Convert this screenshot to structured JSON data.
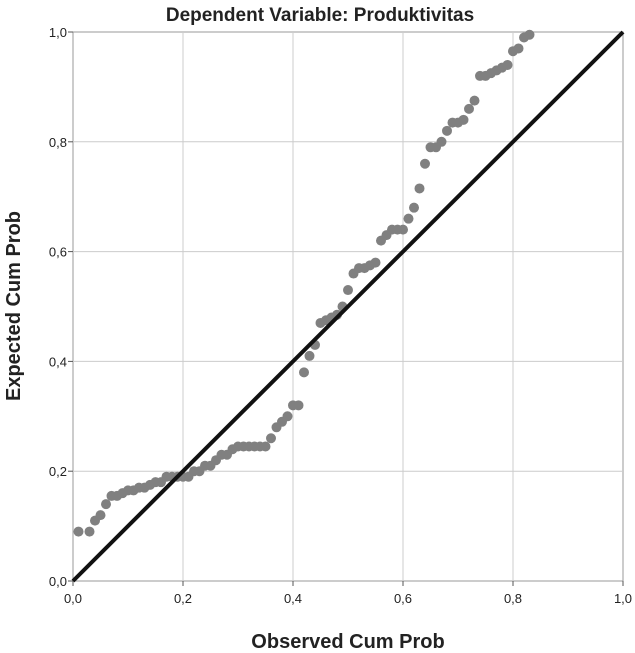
{
  "chart_data": {
    "type": "scatter",
    "title": "Dependent Variable: Produktivitas",
    "xlabel": "Observed Cum Prob",
    "ylabel": "Expected Cum Prob",
    "xlim": [
      0,
      1
    ],
    "ylim": [
      0,
      1
    ],
    "x_ticks": [
      "0,0",
      "0,2",
      "0,4",
      "0,6",
      "0,8",
      "1,0"
    ],
    "y_ticks": [
      "0,0",
      "0,2",
      "0,4",
      "0,6",
      "0,8",
      "1,0"
    ],
    "grid": true,
    "reference_line": {
      "from": [
        0,
        0
      ],
      "to": [
        1,
        1
      ],
      "color": "#111111"
    },
    "point_color": "#808080",
    "points": [
      [
        0.01,
        0.09
      ],
      [
        0.03,
        0.09
      ],
      [
        0.04,
        0.11
      ],
      [
        0.05,
        0.12
      ],
      [
        0.06,
        0.14
      ],
      [
        0.07,
        0.155
      ],
      [
        0.08,
        0.155
      ],
      [
        0.09,
        0.16
      ],
      [
        0.1,
        0.165
      ],
      [
        0.11,
        0.165
      ],
      [
        0.12,
        0.17
      ],
      [
        0.13,
        0.17
      ],
      [
        0.14,
        0.175
      ],
      [
        0.15,
        0.18
      ],
      [
        0.16,
        0.18
      ],
      [
        0.17,
        0.19
      ],
      [
        0.18,
        0.19
      ],
      [
        0.19,
        0.19
      ],
      [
        0.2,
        0.19
      ],
      [
        0.21,
        0.19
      ],
      [
        0.22,
        0.2
      ],
      [
        0.23,
        0.2
      ],
      [
        0.24,
        0.21
      ],
      [
        0.25,
        0.21
      ],
      [
        0.26,
        0.22
      ],
      [
        0.27,
        0.23
      ],
      [
        0.28,
        0.23
      ],
      [
        0.29,
        0.24
      ],
      [
        0.3,
        0.245
      ],
      [
        0.31,
        0.245
      ],
      [
        0.32,
        0.245
      ],
      [
        0.33,
        0.245
      ],
      [
        0.34,
        0.245
      ],
      [
        0.35,
        0.245
      ],
      [
        0.36,
        0.26
      ],
      [
        0.37,
        0.28
      ],
      [
        0.38,
        0.29
      ],
      [
        0.39,
        0.3
      ],
      [
        0.4,
        0.32
      ],
      [
        0.41,
        0.32
      ],
      [
        0.42,
        0.38
      ],
      [
        0.43,
        0.41
      ],
      [
        0.44,
        0.43
      ],
      [
        0.45,
        0.47
      ],
      [
        0.46,
        0.475
      ],
      [
        0.47,
        0.48
      ],
      [
        0.48,
        0.485
      ],
      [
        0.49,
        0.5
      ],
      [
        0.5,
        0.53
      ],
      [
        0.51,
        0.56
      ],
      [
        0.52,
        0.57
      ],
      [
        0.53,
        0.57
      ],
      [
        0.54,
        0.575
      ],
      [
        0.55,
        0.58
      ],
      [
        0.56,
        0.62
      ],
      [
        0.57,
        0.63
      ],
      [
        0.58,
        0.64
      ],
      [
        0.59,
        0.64
      ],
      [
        0.6,
        0.64
      ],
      [
        0.61,
        0.66
      ],
      [
        0.62,
        0.68
      ],
      [
        0.63,
        0.715
      ],
      [
        0.64,
        0.76
      ],
      [
        0.65,
        0.79
      ],
      [
        0.66,
        0.79
      ],
      [
        0.67,
        0.8
      ],
      [
        0.68,
        0.82
      ],
      [
        0.69,
        0.835
      ],
      [
        0.7,
        0.835
      ],
      [
        0.71,
        0.84
      ],
      [
        0.72,
        0.86
      ],
      [
        0.73,
        0.875
      ],
      [
        0.74,
        0.92
      ],
      [
        0.75,
        0.92
      ],
      [
        0.76,
        0.925
      ],
      [
        0.77,
        0.93
      ],
      [
        0.78,
        0.935
      ],
      [
        0.79,
        0.94
      ],
      [
        0.8,
        0.965
      ],
      [
        0.81,
        0.97
      ],
      [
        0.82,
        0.99
      ],
      [
        0.83,
        0.995
      ]
    ]
  }
}
